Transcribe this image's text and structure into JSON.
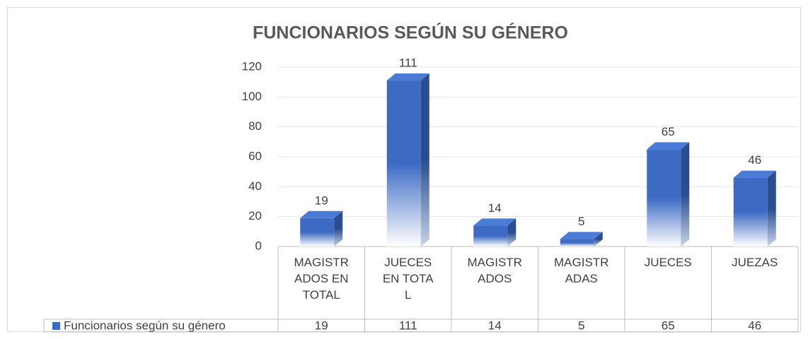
{
  "chart_data": {
    "type": "bar3d",
    "title": "FUNCIONARIOS SEGÚN SU GÉNERO",
    "categories": [
      "MAGISTRADOS EN TOTAL",
      "JUECES EN TOTAL",
      "MAGISTRADOS",
      "MAGISTRADAS",
      "JUECES",
      "JUEZAS"
    ],
    "series": [
      {
        "name": "Funcionarios según su género",
        "color": "#3d6bc4",
        "values": [
          19,
          111,
          14,
          5,
          65,
          46
        ]
      }
    ],
    "ylim": [
      0,
      120
    ],
    "yticks": [
      0,
      20,
      40,
      60,
      80,
      100,
      120
    ],
    "grid": true,
    "data_table": true
  }
}
